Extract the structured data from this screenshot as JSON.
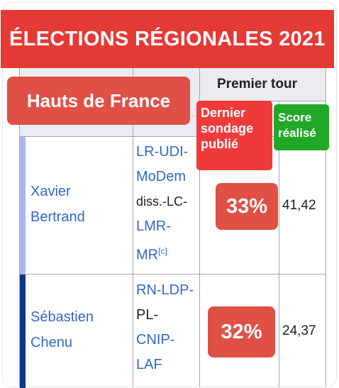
{
  "banner": {
    "title": "ÉLECTIONS RÉGIONALES 2021"
  },
  "region": {
    "label": "Hauts de France"
  },
  "table": {
    "round_header": "Premier tour",
    "poll_header": "Dernier sondage publié",
    "poll_header_lines": [
      "Dernier",
      "sondage",
      "publié"
    ],
    "score_header_lines": [
      "Score",
      "réalisé"
    ],
    "candidates": [
      {
        "name_lines": [
          "Xavier",
          "Bertrand"
        ],
        "party_lines": [
          "LR-UDI-",
          "MoDem",
          "diss.-LC-",
          "LMR-",
          "MR"
        ],
        "party_footnote": "[c]",
        "poll": "33%",
        "score": "41,42",
        "color": "#adb5f0"
      },
      {
        "name_lines": [
          "Sébastien",
          "Chenu"
        ],
        "party_lines": [
          "RN-LDP-",
          "PL-",
          "CNIP-",
          "LAF"
        ],
        "poll": "32%",
        "score": "24,37",
        "color": "#0d378a"
      }
    ]
  },
  "colors": {
    "banner": "#e53935",
    "badge_red": "#e05045",
    "badge_green": "#22a828",
    "link": "#3366cc"
  }
}
